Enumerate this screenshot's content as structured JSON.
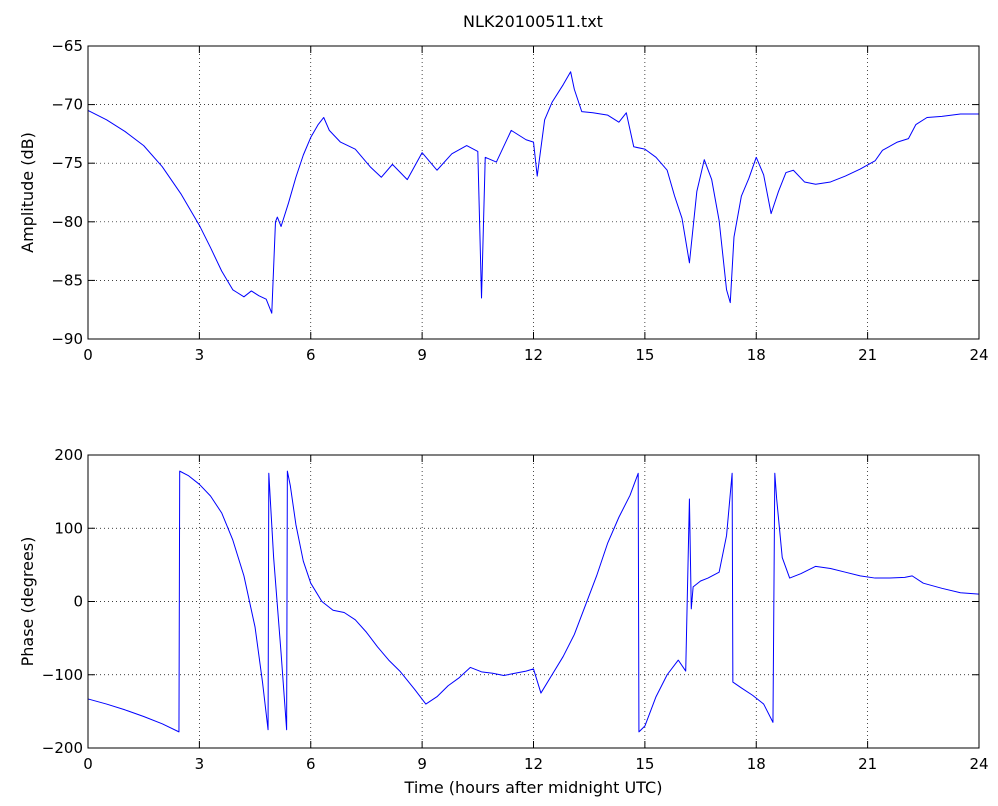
{
  "title": "NLK20100511.txt",
  "colors": {
    "series": "#0000ff",
    "axes": "#000000",
    "background": "#ffffff"
  },
  "chart_data": [
    {
      "type": "line",
      "grid": true,
      "xlabel": "",
      "ylabel": "Amplitude (dB)",
      "xlim": [
        0,
        24
      ],
      "ylim": [
        -90,
        -65
      ],
      "xticks": [
        0,
        3,
        6,
        9,
        12,
        15,
        18,
        21,
        24
      ],
      "xtick_labels": [
        "0",
        "3",
        "6",
        "9",
        "12",
        "15",
        "18",
        "21",
        "24"
      ],
      "yticks": [
        -90,
        -85,
        -80,
        -75,
        -70,
        -65
      ],
      "ytick_labels": [
        "−90",
        "−85",
        "−80",
        "−75",
        "−70",
        "−65"
      ],
      "series": [
        {
          "x": [
            0,
            0.5,
            1.0,
            1.5,
            2.0,
            2.5,
            3.0,
            3.3,
            3.6,
            3.9,
            4.0,
            4.2,
            4.4,
            4.6,
            4.8,
            4.95,
            5.05,
            5.1,
            5.2,
            5.4,
            5.6,
            5.8,
            6.0,
            6.2,
            6.35,
            6.5,
            6.8,
            7.2,
            7.6,
            7.9,
            8.2,
            8.6,
            9.0,
            9.4,
            9.8,
            10.2,
            10.5,
            10.6,
            10.7,
            11.0,
            11.4,
            11.8,
            12.0,
            12.1,
            12.3,
            12.5,
            12.8,
            13.0,
            13.1,
            13.3,
            13.6,
            14.0,
            14.3,
            14.5,
            14.7,
            15.0,
            15.3,
            15.6,
            15.8,
            16.0,
            16.2,
            16.4,
            16.6,
            16.8,
            17.0,
            17.2,
            17.3,
            17.4,
            17.6,
            17.8,
            18.0,
            18.2,
            18.4,
            18.6,
            18.8,
            19.0,
            19.3,
            19.6,
            20.0,
            20.4,
            20.8,
            21.2,
            21.4,
            21.8,
            22.1,
            22.3,
            22.6,
            23.0,
            23.5,
            24.0
          ],
          "y": [
            -70.5,
            -71.3,
            -72.3,
            -73.5,
            -75.3,
            -77.6,
            -80.3,
            -82.2,
            -84.2,
            -85.8,
            -86.0,
            -86.4,
            -85.9,
            -86.3,
            -86.6,
            -87.8,
            -80.0,
            -79.6,
            -80.4,
            -78.4,
            -76.2,
            -74.3,
            -72.8,
            -71.7,
            -71.1,
            -72.2,
            -73.2,
            -73.8,
            -75.3,
            -76.2,
            -75.1,
            -76.4,
            -74.1,
            -75.6,
            -74.2,
            -73.5,
            -74.0,
            -86.5,
            -74.5,
            -74.9,
            -72.2,
            -73.0,
            -73.2,
            -76.1,
            -71.3,
            -69.8,
            -68.3,
            -67.2,
            -68.7,
            -70.6,
            -70.7,
            -70.9,
            -71.5,
            -70.7,
            -73.6,
            -73.8,
            -74.5,
            -75.6,
            -77.8,
            -79.7,
            -83.5,
            -77.4,
            -74.7,
            -76.4,
            -79.9,
            -85.8,
            -86.9,
            -81.3,
            -77.8,
            -76.3,
            -74.5,
            -76.0,
            -79.3,
            -77.4,
            -75.8,
            -75.6,
            -76.6,
            -76.8,
            -76.6,
            -76.1,
            -75.5,
            -74.8,
            -73.9,
            -73.2,
            -72.9,
            -71.7,
            -71.1,
            -71.0,
            -70.8,
            -70.8
          ]
        }
      ]
    },
    {
      "type": "line",
      "grid": true,
      "xlabel": "Time (hours after midnight UTC)",
      "ylabel": "Phase (degrees)",
      "xlim": [
        0,
        24
      ],
      "ylim": [
        -200,
        200
      ],
      "xticks": [
        0,
        3,
        6,
        9,
        12,
        15,
        18,
        21,
        24
      ],
      "xtick_labels": [
        "0",
        "3",
        "6",
        "9",
        "12",
        "15",
        "18",
        "21",
        "24"
      ],
      "yticks": [
        -200,
        -100,
        0,
        100,
        200
      ],
      "ytick_labels": [
        "−200",
        "−100",
        "0",
        "100",
        "200"
      ],
      "series": [
        {
          "x": [
            0,
            0.5,
            1.0,
            1.5,
            2.0,
            2.45,
            2.47,
            2.7,
            3.0,
            3.3,
            3.6,
            3.9,
            4.2,
            4.5,
            4.7,
            4.85,
            4.87,
            5.0,
            5.2,
            5.35,
            5.37,
            5.45,
            5.6,
            5.8,
            6.0,
            6.3,
            6.6,
            6.9,
            7.2,
            7.5,
            7.8,
            8.1,
            8.4,
            8.8,
            9.1,
            9.4,
            9.7,
            10.0,
            10.3,
            10.6,
            10.9,
            11.2,
            11.5,
            11.8,
            12.0,
            12.2,
            12.5,
            12.8,
            13.1,
            13.4,
            13.7,
            14.0,
            14.3,
            14.6,
            14.82,
            14.84,
            15.0,
            15.3,
            15.6,
            15.9,
            16.1,
            16.2,
            16.25,
            16.3,
            16.5,
            16.7,
            17.0,
            17.2,
            17.35,
            17.37,
            17.6,
            17.9,
            18.2,
            18.45,
            18.5,
            18.55,
            18.7,
            18.9,
            19.2,
            19.6,
            20.0,
            20.4,
            20.8,
            21.2,
            21.6,
            22.0,
            22.2,
            22.5,
            23.0,
            23.5,
            24.0
          ],
          "y": [
            -133,
            -140,
            -148,
            -157,
            -167,
            -178,
            178,
            172,
            160,
            144,
            121,
            84,
            35,
            -35,
            -110,
            -175,
            175,
            60,
            -70,
            -175,
            178,
            158,
            105,
            55,
            25,
            0,
            -12,
            -15,
            -25,
            -42,
            -62,
            -80,
            -95,
            -120,
            -140,
            -130,
            -115,
            -104,
            -90,
            -96,
            -98,
            -101,
            -98,
            -95,
            -92,
            -125,
            -100,
            -75,
            -45,
            -5,
            35,
            80,
            115,
            145,
            175,
            -178,
            -170,
            -130,
            -100,
            -80,
            -95,
            140,
            -10,
            20,
            28,
            32,
            40,
            90,
            175,
            -110,
            -118,
            -128,
            -140,
            -165,
            175,
            140,
            60,
            32,
            38,
            48,
            45,
            40,
            35,
            32,
            32,
            33,
            35,
            25,
            18,
            12,
            10
          ]
        }
      ]
    }
  ]
}
